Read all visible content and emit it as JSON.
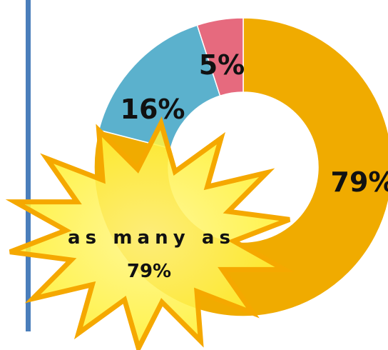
{
  "chart_data": {
    "type": "pie",
    "style": "donut",
    "categories": [
      "",
      "",
      ""
    ],
    "values": [
      79,
      16,
      5
    ],
    "labels": [
      "79%",
      "16%",
      "5%"
    ],
    "colors": [
      "#F0AB00",
      "#5BB1CD",
      "#E66A7E"
    ],
    "title": "",
    "legend": false
  },
  "callout": {
    "line1": "as many as",
    "line2": "79%"
  },
  "colors": {
    "accent_bar": "#4A7EBB",
    "burst_fill": "#FFF250",
    "burst_stroke": "#F5A800"
  }
}
